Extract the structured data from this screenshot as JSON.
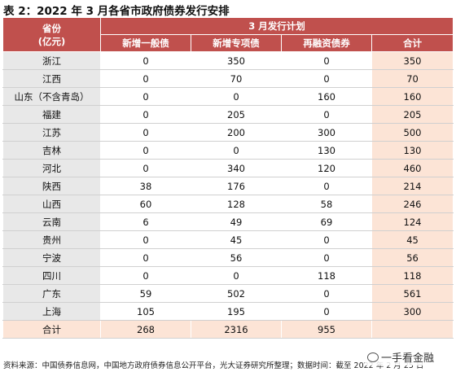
{
  "title": "表 2：2022 年 3 月各省市政府债券发行安排",
  "header": {
    "province": "省份",
    "unit": "(亿元)",
    "group": "3 月发行计划",
    "columns": [
      "新增一般债",
      "新增专项债",
      "再融资债券",
      "合计"
    ]
  },
  "rows": [
    {
      "province": "浙江",
      "general": "0",
      "special": "350",
      "refinance": "0",
      "total": "350"
    },
    {
      "province": "江西",
      "general": "0",
      "special": "70",
      "refinance": "0",
      "total": "70"
    },
    {
      "province": "山东（不含青岛）",
      "general": "0",
      "special": "0",
      "refinance": "160",
      "total": "160"
    },
    {
      "province": "福建",
      "general": "0",
      "special": "205",
      "refinance": "0",
      "total": "205"
    },
    {
      "province": "江苏",
      "general": "0",
      "special": "200",
      "refinance": "300",
      "total": "500"
    },
    {
      "province": "吉林",
      "general": "0",
      "special": "0",
      "refinance": "130",
      "total": "130"
    },
    {
      "province": "河北",
      "general": "0",
      "special": "340",
      "refinance": "120",
      "total": "460"
    },
    {
      "province": "陕西",
      "general": "38",
      "special": "176",
      "refinance": "0",
      "total": "214"
    },
    {
      "province": "山西",
      "general": "60",
      "special": "128",
      "refinance": "58",
      "total": "246"
    },
    {
      "province": "云南",
      "general": "6",
      "special": "49",
      "refinance": "69",
      "total": "124"
    },
    {
      "province": "贵州",
      "general": "0",
      "special": "45",
      "refinance": "0",
      "total": "45"
    },
    {
      "province": "宁波",
      "general": "0",
      "special": "56",
      "refinance": "0",
      "total": "56"
    },
    {
      "province": "四川",
      "general": "0",
      "special": "0",
      "refinance": "118",
      "total": "118"
    },
    {
      "province": "广东",
      "general": "59",
      "special": "502",
      "refinance": "0",
      "total": "561"
    },
    {
      "province": "上海",
      "general": "105",
      "special": "195",
      "refinance": "0",
      "total": "300"
    }
  ],
  "total_row": {
    "label": "合计",
    "general": "268",
    "special": "2316",
    "refinance": "955",
    "total": ""
  },
  "source": "资料来源：中国债券信息网，中国地方政府债券信息公开平台，光大证券研究所整理；数据时间：截至 2022 年 2 月 25 日",
  "watermark": "一手看金融"
}
